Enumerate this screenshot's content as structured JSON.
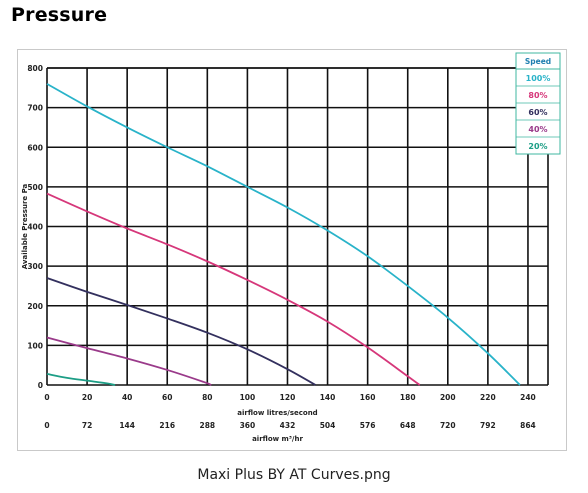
{
  "page": {
    "title": "Pressure",
    "caption": "Maxi Plus BY AT Curves.png"
  },
  "chart_data": {
    "type": "line",
    "title": "",
    "xlabel": "airflow litres/second",
    "xlabel2": "airflow m³/hr",
    "ylabel": "Available Pressure Pa",
    "xlim": [
      0,
      250
    ],
    "ylim": [
      0,
      800
    ],
    "x_ticks": [
      "0",
      "20",
      "40",
      "60",
      "80",
      "100",
      "120",
      "140",
      "160",
      "180",
      "200",
      "220",
      "240"
    ],
    "x_ticks_m3hr": [
      "0",
      "72",
      "144",
      "216",
      "288",
      "360",
      "432",
      "504",
      "576",
      "648",
      "720",
      "792",
      "864"
    ],
    "y_ticks": [
      "0",
      "100",
      "200",
      "300",
      "400",
      "500",
      "600",
      "700",
      "800"
    ],
    "grid": true,
    "legend_title": "Speed",
    "legend_position": "top-right",
    "series": [
      {
        "name": "100%",
        "color": "#29b3c9",
        "x": [
          0,
          20,
          40,
          60,
          80,
          100,
          120,
          140,
          160,
          180,
          200,
          220,
          236
        ],
        "y": [
          760,
          703,
          650,
          600,
          552,
          500,
          448,
          390,
          325,
          250,
          170,
          80,
          0
        ]
      },
      {
        "name": "80%",
        "color": "#d6377a",
        "x": [
          0,
          20,
          40,
          60,
          80,
          100,
          120,
          140,
          160,
          180,
          186
        ],
        "y": [
          483,
          438,
          395,
          355,
          312,
          265,
          215,
          160,
          95,
          22,
          0
        ]
      },
      {
        "name": "60%",
        "color": "#33305e",
        "x": [
          0,
          20,
          40,
          60,
          80,
          100,
          120,
          134
        ],
        "y": [
          270,
          235,
          202,
          168,
          132,
          90,
          40,
          0
        ]
      },
      {
        "name": "40%",
        "color": "#9a3a8a",
        "x": [
          0,
          20,
          40,
          60,
          78,
          82
        ],
        "y": [
          120,
          93,
          67,
          38,
          8,
          0
        ]
      },
      {
        "name": "20%",
        "color": "#1d9e86",
        "x": [
          0,
          10,
          20,
          30,
          34
        ],
        "y": [
          28,
          18,
          11,
          4,
          0
        ]
      }
    ]
  }
}
